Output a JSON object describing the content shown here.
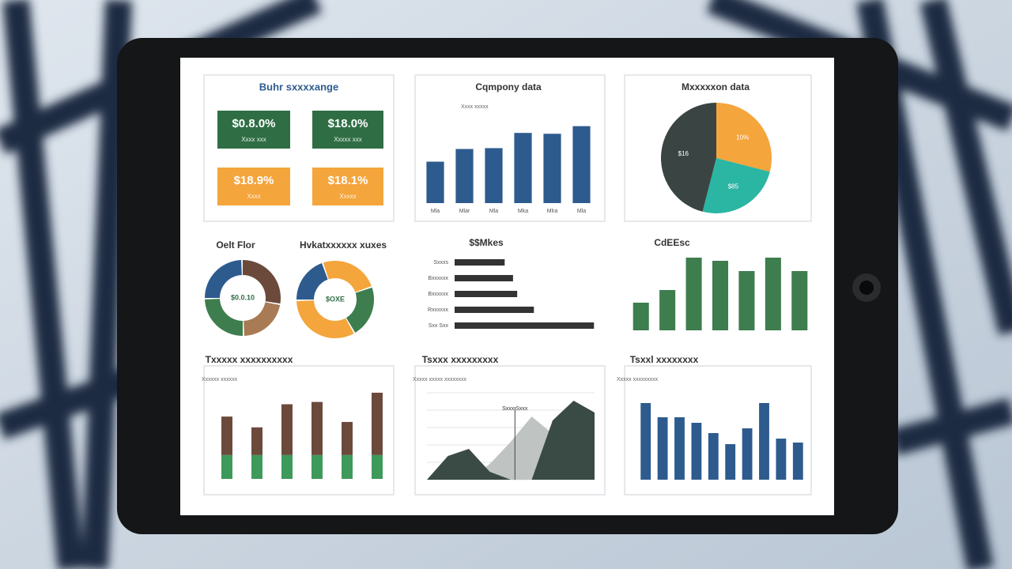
{
  "dashboard": {
    "kpi_title": "Buhr sxxxxange",
    "kpis": [
      {
        "value": "$0.8.0%",
        "label": "Xxxx xxx"
      },
      {
        "value": "$18.0%",
        "label": "Xxxxx xxx"
      },
      {
        "value": "$18.9%",
        "label": "Xxxx"
      },
      {
        "value": "$18.1%",
        "label": "Xxxxx"
      }
    ]
  },
  "chart_data": [
    {
      "type": "bar",
      "title": "Cqmpony data",
      "subtitle": "Xxxx xxxxx",
      "categories": [
        "Mla",
        "Mlar",
        "Mla",
        "Mka",
        "Mlra",
        "Mla"
      ],
      "values": [
        49,
        64,
        65,
        83,
        82,
        91
      ],
      "color": "#2e5b8e",
      "ylim": [
        0,
        100
      ]
    },
    {
      "type": "pie",
      "title": "Mxxxxxon data",
      "categories": [
        "10%",
        "$85",
        "$16"
      ],
      "values": [
        29,
        25,
        46
      ],
      "colors": [
        "#f4a53c",
        "#2bb5a3",
        "#3a4543"
      ]
    },
    {
      "type": "donut",
      "title": "Oelt Flor",
      "center_label": "$0.0.10",
      "values": [
        25,
        28,
        22,
        25
      ],
      "colors": [
        "#2e5b8e",
        "#6b4a3c",
        "#a87b55",
        "#3d7d4e"
      ]
    },
    {
      "type": "donut",
      "title": "Hvkatxxxxxx xuxes",
      "center_label": "$OXE",
      "values": [
        20,
        25,
        22,
        33
      ],
      "colors": [
        "#2e5b8e",
        "#f4a53c",
        "#3d7d4e",
        "#f4a53c"
      ]
    },
    {
      "type": "hbar",
      "title": "$$Mkes",
      "categories": [
        "Sxxxs",
        "Bxxxxxx",
        "Bxxxxxx",
        "Rxxxxxx",
        "Sxx Sxx"
      ],
      "values": [
        60,
        70,
        75,
        95,
        167
      ],
      "color": "#333333",
      "xlim": [
        0,
        180
      ]
    },
    {
      "type": "bar",
      "title": "CdEEsc",
      "categories": [
        null,
        null,
        null,
        null,
        null,
        null,
        null
      ],
      "values": [
        35,
        51,
        92,
        88,
        75,
        92,
        75
      ],
      "color": "#3d7d4e",
      "ylim": [
        0,
        100
      ]
    },
    {
      "type": "stacked_bar",
      "title": "Txxxxx xxxxxxxxxx",
      "subtitle": "Xxxxxx xxxxxx",
      "categories": [
        null,
        null,
        null,
        null,
        null,
        null
      ],
      "series": [
        {
          "name": null,
          "color": "#3d9a5a",
          "values": [
            31,
            31,
            31,
            31,
            31,
            31
          ]
        },
        {
          "name": null,
          "color": "#6b4a3c",
          "values": [
            50,
            36,
            66,
            69,
            43,
            81
          ]
        }
      ],
      "ylim": [
        0,
        115
      ]
    },
    {
      "type": "area",
      "title": "Tsxxx xxxxxxxxx",
      "subtitle": "Xxxxx xxxxx xxxxxxxx",
      "annotation": "Sxxx Sxxx",
      "categories": [
        null,
        null,
        null,
        null,
        null,
        null,
        null,
        null,
        null
      ],
      "series": [
        {
          "name": null,
          "color": "#bfc4c2",
          "values": [
            0,
            0,
            0,
            20,
            48,
            80,
            58,
            0,
            0
          ]
        },
        {
          "name": null,
          "color": "#3a4a44",
          "values": [
            0,
            30,
            39,
            10,
            0,
            0,
            75,
            100,
            85
          ]
        }
      ],
      "ylim": [
        0,
        110
      ]
    },
    {
      "type": "bar",
      "title": "Tsxxl xxxxxxxx",
      "subtitle": "Xxxxx xxxxxxxxx",
      "categories": [
        null,
        null,
        null,
        null,
        null,
        null,
        null,
        null,
        null,
        null
      ],
      "values": [
        97,
        79,
        79,
        72,
        59,
        45,
        65,
        97,
        52,
        47
      ],
      "color": "#2e5b8e",
      "ylim": [
        0,
        110
      ]
    }
  ]
}
